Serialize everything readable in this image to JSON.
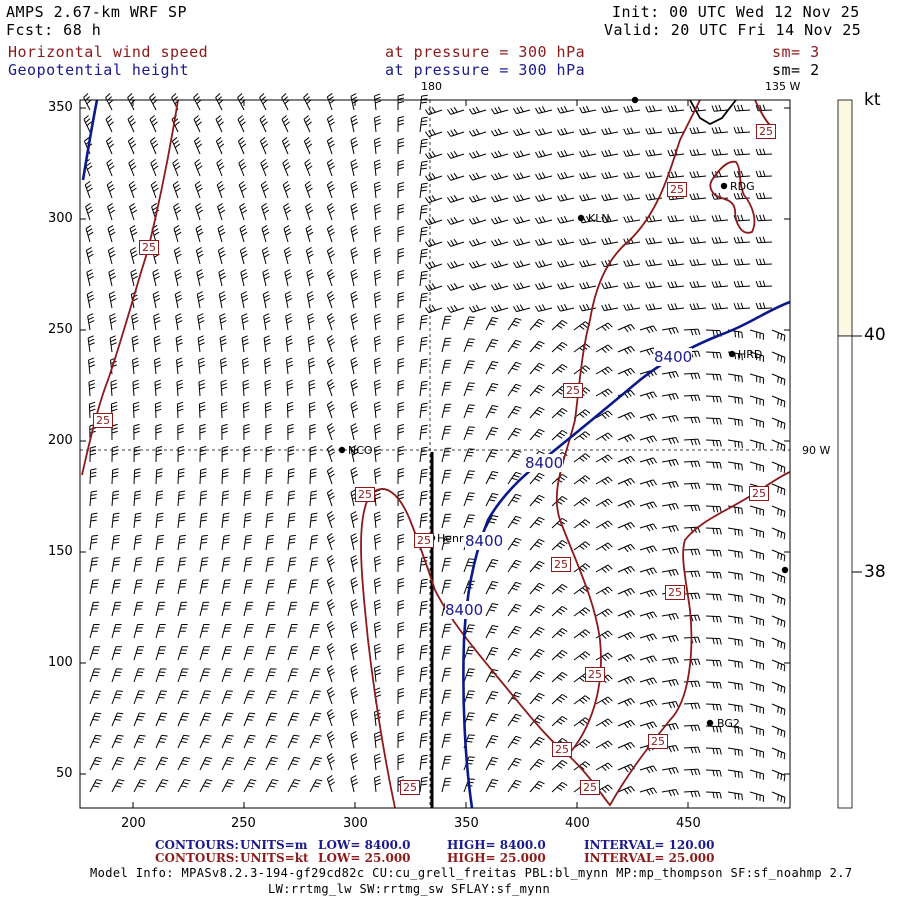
{
  "header": {
    "model_line": "AMPS 2.67-km WRF SP",
    "forecast_line": "Fcst:   68 h",
    "init_line": "Init: 00 UTC Wed 12 Nov 25",
    "valid_line": "Valid: 20 UTC Fri 14 Nov 25",
    "field1_name": "Horizontal wind speed",
    "field1_level": "at pressure =  300 hPa",
    "field1_smooth": "sm= 3",
    "field2_name": "Geopotential height",
    "field2_level": "at pressure =  300 hPa",
    "field2_smooth": "sm= 2"
  },
  "colors": {
    "wind_contour": "#8b1a1a",
    "height_contour": "#0a1a8b",
    "colorbar_fill": "#fdf8e4",
    "barbs": "#000000"
  },
  "map": {
    "x_ticks": [
      "200",
      "250",
      "300",
      "350",
      "400",
      "450"
    ],
    "y_ticks": [
      "50",
      "100",
      "150",
      "200",
      "250",
      "300",
      "350"
    ],
    "meridian_labels": [
      "180",
      "135 W",
      "90 W"
    ],
    "stations": [
      "KLN",
      "RDG",
      "HRD",
      "NCO",
      "Henr",
      "BG2"
    ],
    "wind_contour_label": "25",
    "height_contour_label": "8400"
  },
  "colorbar": {
    "unit": "kt",
    "labels": [
      "40",
      "38"
    ]
  },
  "footer": {
    "contours1_prefix": "CONTOURS:",
    "contours1_units": "UNITS=m",
    "contours1_low": "LOW=  8400.0",
    "contours1_high": "HIGH=  8400.0",
    "contours1_interval": "INTERVAL=    120.00",
    "contours2_prefix": "CONTOURS:",
    "contours2_units": "UNITS=kt",
    "contours2_low": "LOW=  25.000",
    "contours2_high": "HIGH=  25.000",
    "contours2_interval": "INTERVAL=    25.000",
    "model_info1": "Model Info: MPASv8.2.3-194-gf29cd82c CU:cu_grell_freitas PBL:bl_mynn MP:mp_thompson SF:sf_noahmp 2.7",
    "model_info2": "LW:rrtmg_lw SW:rrtmg_sw SFLAY:sf_mynn"
  }
}
